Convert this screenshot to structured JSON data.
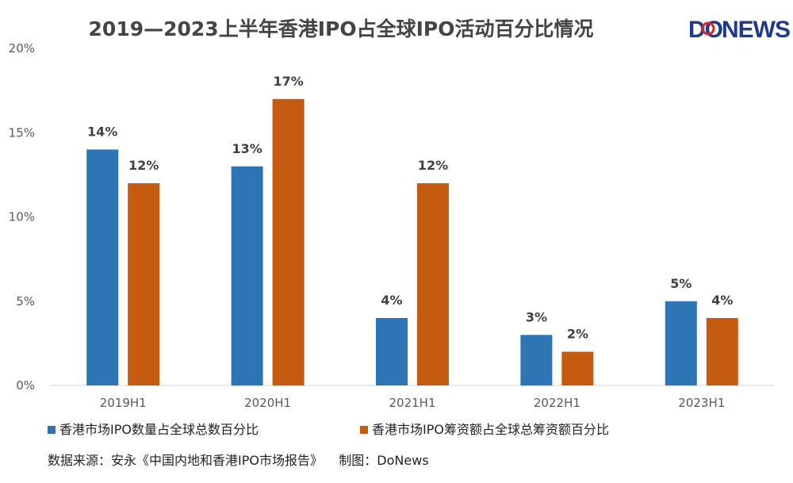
{
  "chart_data": {
    "type": "bar",
    "title": "2019—2023上半年香港IPO占全球IPO活动百分比情况",
    "categories": [
      "2019H1",
      "2020H1",
      "2021H1",
      "2022H1",
      "2023H1"
    ],
    "series": [
      {
        "name": "香港市场IPO数量占全球总数百分比",
        "values": [
          14,
          13,
          4,
          3,
          5
        ],
        "labels": [
          "14%",
          "13%",
          "4%",
          "3%",
          "5%"
        ],
        "color": "#2E75B6"
      },
      {
        "name": "香港市场IPO筹资额占全球总筹资额百分比",
        "values": [
          12,
          17,
          12,
          2,
          4
        ],
        "labels": [
          "12%",
          "17%",
          "12%",
          "2%",
          "4%"
        ],
        "color": "#C55A11"
      }
    ],
    "ylim": [
      0,
      20
    ],
    "yticks": [
      0,
      5,
      10,
      15,
      20
    ],
    "ytick_labels": [
      "0%",
      "5%",
      "10%",
      "15%",
      "20%"
    ],
    "grid": false,
    "legend_position": "bottom-left"
  },
  "logo": {
    "text_do": "DO",
    "text_news": "NEWS",
    "color": "#1F3A8A",
    "accent": "#D62828"
  },
  "source_note": "数据来源：安永《中国内地和香港IPO市场报告》    制图：DoNews"
}
